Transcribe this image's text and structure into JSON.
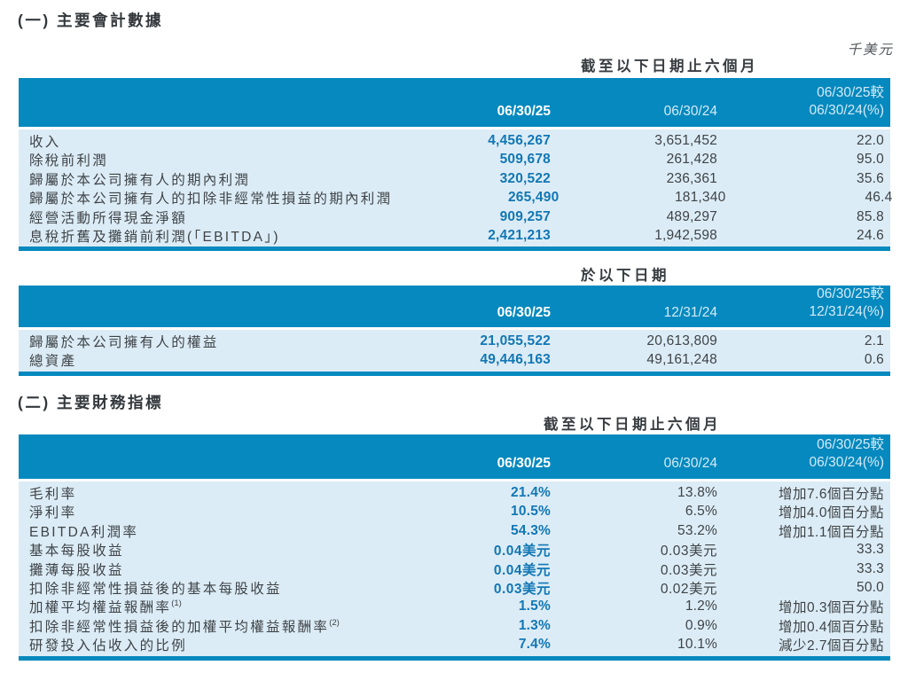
{
  "colors": {
    "header_blue": "#0589BE",
    "body_blue": "#DCECF6",
    "value_blue": "#1277B5",
    "text_dark": "#3E4347",
    "header_muted": "#D5EAF6"
  },
  "unit_note": "千美元",
  "section1": {
    "title": "(一) 主要會計數據"
  },
  "section2": {
    "title": "(二) 主要財務指標"
  },
  "tables": [
    {
      "caption": "截至以下日期止六個月",
      "columns": {
        "c1": "06/30/25",
        "c2": "06/30/24",
        "c3_line1": "06/30/25較",
        "c3_line2": "06/30/24(%)"
      },
      "rows": [
        {
          "label": "收入",
          "v1": "4,456,267",
          "v2": "3,651,452",
          "v3": "22.0"
        },
        {
          "label": "除稅前利潤",
          "v1": "509,678",
          "v2": "261,428",
          "v3": "95.0"
        },
        {
          "label": "歸屬於本公司擁有人的期內利潤",
          "v1": "320,522",
          "v2": "236,361",
          "v3": "35.6"
        },
        {
          "label": "歸屬於本公司擁有人的扣除非經常性損益的期內利潤",
          "v1": "265,490",
          "v2": "181,340",
          "v3": "46.4"
        },
        {
          "label": "經營活動所得現金淨額",
          "v1": "909,257",
          "v2": "489,297",
          "v3": "85.8"
        },
        {
          "label": "息稅折舊及攤銷前利潤(「EBITDA」)",
          "v1": "2,421,213",
          "v2": "1,942,598",
          "v3": "24.6"
        }
      ]
    },
    {
      "caption": "於以下日期",
      "columns": {
        "c1": "06/30/25",
        "c2": "12/31/24",
        "c3_line1": "06/30/25較",
        "c3_line2": "12/31/24(%)"
      },
      "rows": [
        {
          "label": "歸屬於本公司擁有人的權益",
          "v1": "21,055,522",
          "v2": "20,613,809",
          "v3": "2.1"
        },
        {
          "label": "總資產",
          "v1": "49,446,163",
          "v2": "49,161,248",
          "v3": "0.6"
        }
      ]
    },
    {
      "caption": "截至以下日期止六個月",
      "columns": {
        "c1": "06/30/25",
        "c2": "06/30/24",
        "c3_line1": "06/30/25較",
        "c3_line2": "06/30/24(%)"
      },
      "rows": [
        {
          "label": "毛利率",
          "v1": "21.4%",
          "v2": "13.8%",
          "v3": "增加7.6個百分點"
        },
        {
          "label": "淨利率",
          "v1": "10.5%",
          "v2": "6.5%",
          "v3": "增加4.0個百分點"
        },
        {
          "label": "EBITDA利潤率",
          "v1": "54.3%",
          "v2": "53.2%",
          "v3": "增加1.1個百分點"
        },
        {
          "label": "基本每股收益",
          "v1": "0.04美元",
          "v2": "0.03美元",
          "v3": "33.3"
        },
        {
          "label": "攤薄每股收益",
          "v1": "0.04美元",
          "v2": "0.03美元",
          "v3": "33.3"
        },
        {
          "label": "扣除非經常性損益後的基本每股收益",
          "v1": "0.03美元",
          "v2": "0.02美元",
          "v3": "50.0"
        },
        {
          "label": "加權平均權益報酬率",
          "sup": "(1)",
          "v1": "1.5%",
          "v2": "1.2%",
          "v3": "增加0.3個百分點"
        },
        {
          "label": "扣除非經常性損益後的加權平均權益報酬率",
          "sup": "(2)",
          "v1": "1.3%",
          "v2": "0.9%",
          "v3": "增加0.4個百分點"
        },
        {
          "label": "研發投入佔收入的比例",
          "v1": "7.4%",
          "v2": "10.1%",
          "v3": "減少2.7個百分點"
        }
      ]
    }
  ]
}
